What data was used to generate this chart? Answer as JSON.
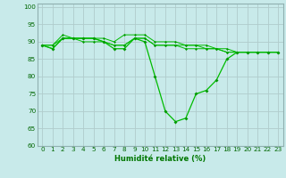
{
  "xlabel": "Humidité relative (%)",
  "background_color": "#c8eaea",
  "grid_color": "#b0cccc",
  "line_color": "#00bb00",
  "marker_color": "#009900",
  "xlim": [
    -0.5,
    23.5
  ],
  "ylim": [
    60,
    101
  ],
  "yticks": [
    60,
    65,
    70,
    75,
    80,
    85,
    90,
    95,
    100
  ],
  "xticks": [
    0,
    1,
    2,
    3,
    4,
    5,
    6,
    7,
    8,
    9,
    10,
    11,
    12,
    13,
    14,
    15,
    16,
    17,
    18,
    19,
    20,
    21,
    22,
    23
  ],
  "series": [
    [
      89,
      88,
      91,
      91,
      91,
      91,
      90,
      88,
      88,
      91,
      90,
      80,
      70,
      67,
      68,
      75,
      76,
      79,
      85,
      87,
      87,
      87,
      87,
      87
    ],
    [
      89,
      89,
      91,
      91,
      90,
      90,
      90,
      89,
      89,
      91,
      91,
      89,
      89,
      89,
      89,
      89,
      88,
      88,
      88,
      87,
      87,
      87,
      87,
      87
    ],
    [
      89,
      89,
      92,
      91,
      91,
      91,
      91,
      90,
      92,
      92,
      92,
      90,
      90,
      90,
      89,
      89,
      89,
      88,
      87,
      87,
      87,
      87,
      87,
      87
    ],
    [
      89,
      88,
      91,
      91,
      91,
      91,
      90,
      89,
      89,
      91,
      91,
      89,
      89,
      89,
      88,
      88,
      88,
      88,
      87,
      87,
      87,
      87,
      87,
      87
    ]
  ],
  "xlabel_fontsize": 6.0,
  "tick_fontsize": 5.2
}
